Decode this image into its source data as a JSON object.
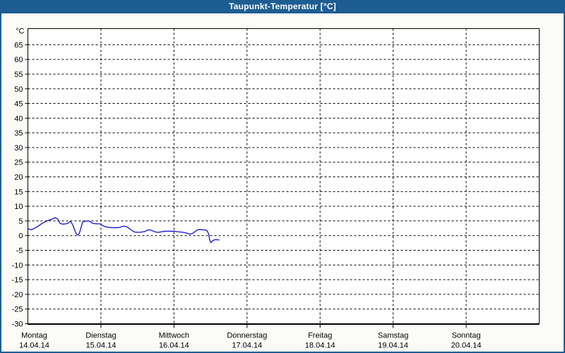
{
  "window": {
    "title": "Taupunkt-Temperatur [°C]"
  },
  "colors": {
    "titlebar": "#1E5D92",
    "frame": "#1E5D92",
    "content_background": "#FBFBF8",
    "plot_background": "#FFFFFF",
    "grid": "#000000",
    "axis": "#000000",
    "line": "#2020C8",
    "title_text": "#FFFFFF",
    "label_text": "#000000"
  },
  "chart_data": {
    "type": "line",
    "title": "Taupunkt-Temperatur [°C]",
    "y_unit_label": "°C",
    "ylabel": "",
    "xlabel": "",
    "ylim": [
      -30,
      70.5
    ],
    "y_tick_step": 5,
    "y_ticks": [
      65,
      60,
      55,
      50,
      45,
      40,
      35,
      30,
      25,
      20,
      15,
      10,
      5,
      0,
      -5,
      -10,
      -15,
      -20,
      -25,
      -30
    ],
    "grid": {
      "horizontal": "dashed every 5 °C",
      "vertical": "dashed at each day boundary"
    },
    "x_range_days": [
      0,
      7
    ],
    "x_days": [
      {
        "name": "Montag",
        "date": "14.04.14"
      },
      {
        "name": "Dienstag",
        "date": "15.04.14"
      },
      {
        "name": "Mittwoch",
        "date": "16.04.14"
      },
      {
        "name": "Donnerstag",
        "date": "17.04.14"
      },
      {
        "name": "Freitag",
        "date": "18.04.14"
      },
      {
        "name": "Samstag",
        "date": "19.04.14"
      },
      {
        "name": "Sonntag",
        "date": "20.04.14"
      }
    ],
    "series": [
      {
        "name": "Taupunkt",
        "color": "#2020C8",
        "points_day_degC": [
          [
            0.005,
            2.3
          ],
          [
            0.05,
            2.0
          ],
          [
            0.1,
            2.6
          ],
          [
            0.145,
            3.3
          ],
          [
            0.19,
            4.1
          ],
          [
            0.235,
            4.7
          ],
          [
            0.28,
            5.2
          ],
          [
            0.32,
            5.5
          ],
          [
            0.375,
            6.1
          ],
          [
            0.41,
            5.6
          ],
          [
            0.44,
            4.2
          ],
          [
            0.475,
            3.9
          ],
          [
            0.52,
            4.0
          ],
          [
            0.555,
            4.3
          ],
          [
            0.585,
            4.9
          ],
          [
            0.615,
            3.6
          ],
          [
            0.645,
            1.6
          ],
          [
            0.665,
            0.5
          ],
          [
            0.685,
            0.2
          ],
          [
            0.705,
            0.8
          ],
          [
            0.725,
            2.6
          ],
          [
            0.75,
            4.7
          ],
          [
            0.79,
            4.9
          ],
          [
            0.83,
            5.0
          ],
          [
            0.855,
            4.8
          ],
          [
            0.875,
            4.3
          ],
          [
            0.91,
            4.1
          ],
          [
            0.95,
            4.0
          ],
          [
            0.99,
            4.0
          ],
          [
            1.02,
            3.5
          ],
          [
            1.06,
            3.0
          ],
          [
            1.11,
            2.8
          ],
          [
            1.16,
            2.7
          ],
          [
            1.21,
            2.7
          ],
          [
            1.26,
            2.8
          ],
          [
            1.3,
            3.2
          ],
          [
            1.34,
            3.1
          ],
          [
            1.38,
            2.6
          ],
          [
            1.42,
            1.8
          ],
          [
            1.46,
            1.2
          ],
          [
            1.51,
            1.1
          ],
          [
            1.56,
            1.2
          ],
          [
            1.6,
            1.4
          ],
          [
            1.64,
            1.9
          ],
          [
            1.67,
            2.0
          ],
          [
            1.71,
            1.6
          ],
          [
            1.75,
            1.2
          ],
          [
            1.79,
            1.1
          ],
          [
            1.83,
            1.3
          ],
          [
            1.875,
            1.5
          ],
          [
            1.92,
            1.5
          ],
          [
            1.96,
            1.5
          ],
          [
            2.0,
            1.5
          ],
          [
            2.05,
            1.3
          ],
          [
            2.1,
            1.2
          ],
          [
            2.15,
            1.0
          ],
          [
            2.19,
            0.7
          ],
          [
            2.22,
            0.5
          ],
          [
            2.25,
            0.7
          ],
          [
            2.285,
            1.3
          ],
          [
            2.32,
            1.9
          ],
          [
            2.35,
            2.1
          ],
          [
            2.39,
            2.0
          ],
          [
            2.43,
            1.9
          ],
          [
            2.455,
            1.6
          ],
          [
            2.475,
            0.5
          ],
          [
            2.49,
            -1.5
          ],
          [
            2.505,
            -2.4
          ],
          [
            2.53,
            -1.7
          ],
          [
            2.56,
            -1.4
          ],
          [
            2.6,
            -1.4
          ],
          [
            2.615,
            -1.5
          ]
        ]
      }
    ],
    "legend": "none",
    "notes": "data line spans Monday 00:00 to ~Wednesday 15:00 only"
  }
}
